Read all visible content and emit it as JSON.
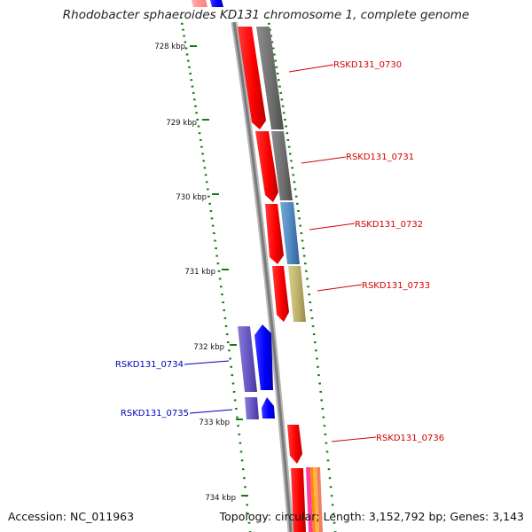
{
  "title": "Rhodobacter sphaeroides KD131 chromosome 1, complete genome",
  "footer": {
    "accession": "Accession: NC_011963",
    "summary": "Topology: circular; Length: 3,152,792 bp; Genes: 3,143"
  },
  "colors": {
    "forward_label": "#d40000",
    "reverse_label": "#0000bb",
    "tick": "#1a7a1a",
    "backbone": "#8a8a8a"
  },
  "ticks": [
    "728 kbp",
    "729 kbp",
    "730 kbp",
    "731 kbp",
    "732 kbp",
    "733 kbp",
    "734 kbp"
  ],
  "genes": [
    {
      "label": "RSKD131_0730",
      "strand": "forward"
    },
    {
      "label": "RSKD131_0731",
      "strand": "forward"
    },
    {
      "label": "RSKD131_0732",
      "strand": "forward"
    },
    {
      "label": "RSKD131_0733",
      "strand": "forward"
    },
    {
      "label": "RSKD131_0734",
      "strand": "reverse"
    },
    {
      "label": "RSKD131_0735",
      "strand": "reverse"
    },
    {
      "label": "RSKD131_0736",
      "strand": "forward"
    }
  ]
}
